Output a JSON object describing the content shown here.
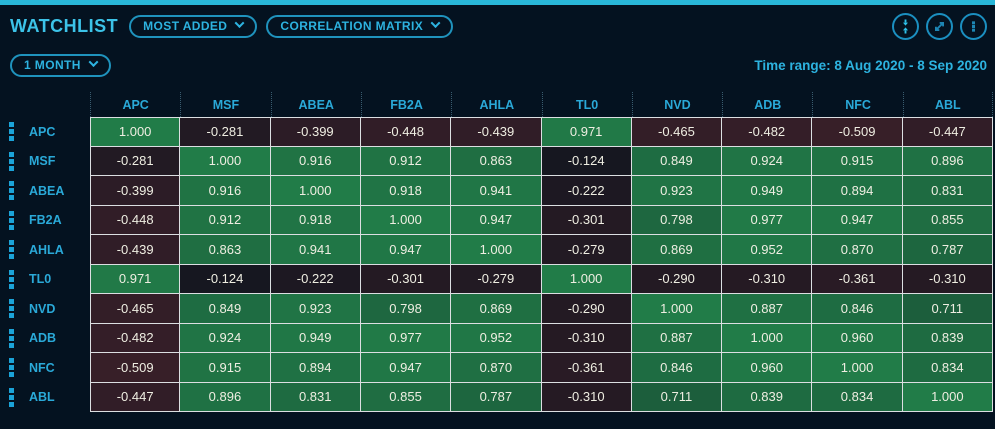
{
  "header": {
    "title": "WATCHLIST",
    "most_added_label": "MOST ADDED",
    "correlation_matrix_label": "CORRELATION MATRIX",
    "period_label": "1 MONTH",
    "time_range_label": "Time range: 8 Aug 2020 - 8 Sep 2020",
    "icons": [
      "collapse-vertical-icon",
      "expand-diagonal-icon",
      "kebab-menu-icon",
      "chevron-down-icon",
      "drag-handle-icon"
    ]
  },
  "colors": {
    "accent_bar": "#29b7d9",
    "text_cyan": "#2db3e0",
    "grid_line": "#dcdfe2",
    "cell_base": "#10151e",
    "cell_positive": "#217c48",
    "cell_negative": "#6e2d37",
    "cell_text": "#efeee2"
  },
  "chart_data": {
    "type": "heatmap",
    "title": "Correlation Matrix",
    "categories": [
      "APC",
      "MSF",
      "ABEA",
      "FB2A",
      "AHLA",
      "TL0",
      "NVD",
      "ADB",
      "NFC",
      "ABL"
    ],
    "value_range": [
      -1,
      1
    ],
    "value_format": "3-decimals",
    "rows": [
      {
        "label": "APC",
        "values": [
          1.0,
          -0.281,
          -0.399,
          -0.448,
          -0.439,
          0.971,
          -0.465,
          -0.482,
          -0.509,
          -0.447
        ]
      },
      {
        "label": "MSF",
        "values": [
          -0.281,
          1.0,
          0.916,
          0.912,
          0.863,
          -0.124,
          0.849,
          0.924,
          0.915,
          0.896
        ]
      },
      {
        "label": "ABEA",
        "values": [
          -0.399,
          0.916,
          1.0,
          0.918,
          0.941,
          -0.222,
          0.923,
          0.949,
          0.894,
          0.831
        ]
      },
      {
        "label": "FB2A",
        "values": [
          -0.448,
          0.912,
          0.918,
          1.0,
          0.947,
          -0.301,
          0.798,
          0.977,
          0.947,
          0.855
        ]
      },
      {
        "label": "AHLA",
        "values": [
          -0.439,
          0.863,
          0.941,
          0.947,
          1.0,
          -0.279,
          0.869,
          0.952,
          0.87,
          0.787
        ]
      },
      {
        "label": "TL0",
        "values": [
          0.971,
          -0.124,
          -0.222,
          -0.301,
          -0.279,
          1.0,
          -0.29,
          -0.31,
          -0.361,
          -0.31
        ]
      },
      {
        "label": "NVD",
        "values": [
          -0.465,
          0.849,
          0.923,
          0.798,
          0.869,
          -0.29,
          1.0,
          0.887,
          0.846,
          0.711
        ]
      },
      {
        "label": "ADB",
        "values": [
          -0.482,
          0.924,
          0.949,
          0.977,
          0.952,
          -0.31,
          0.887,
          1.0,
          0.96,
          0.839
        ]
      },
      {
        "label": "NFC",
        "values": [
          -0.509,
          0.915,
          0.894,
          0.947,
          0.87,
          -0.361,
          0.846,
          0.96,
          1.0,
          0.834
        ]
      },
      {
        "label": "ABL",
        "values": [
          -0.447,
          0.896,
          0.831,
          0.855,
          0.787,
          -0.31,
          0.711,
          0.839,
          0.834,
          1.0
        ]
      }
    ]
  }
}
